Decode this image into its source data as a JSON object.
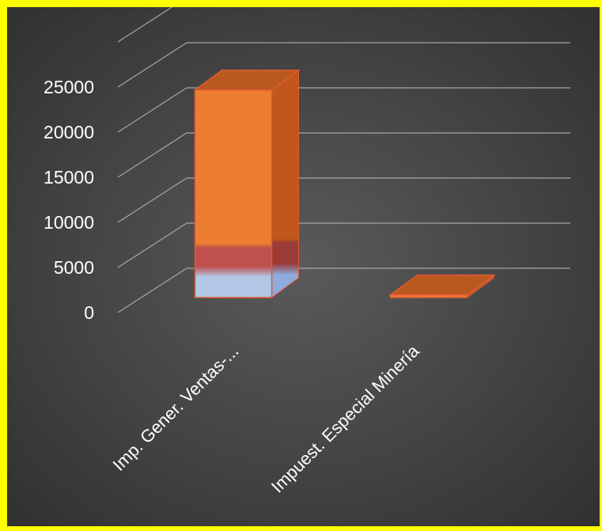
{
  "colors": {
    "frame": "#ffff00",
    "background_center": "#5a5a5a",
    "background_edge": "#2e2e2e",
    "gridline": "#a6a6a6",
    "text": "#ffffff",
    "bar_front": "#ed7d31",
    "bar_side": "#c0581b",
    "bar_top": "#b9581f",
    "bar_outline": "#e05a35",
    "bar_band_red": "#c0504d",
    "bar_band_blue": "#b4c7e7"
  },
  "chart_data": {
    "type": "bar",
    "style": "3d-column",
    "categories": [
      "Imp. Gener.  Ventas-...",
      "Impuest. Especial Minería"
    ],
    "values": [
      23000,
      300
    ],
    "ylim": [
      0,
      30000
    ],
    "yticks": [
      0,
      5000,
      10000,
      15000,
      20000,
      25000
    ],
    "ytick_labels": [
      "0",
      "5000",
      "10000",
      "15000",
      "20000",
      "25000"
    ],
    "grid": true,
    "legend": "none"
  }
}
